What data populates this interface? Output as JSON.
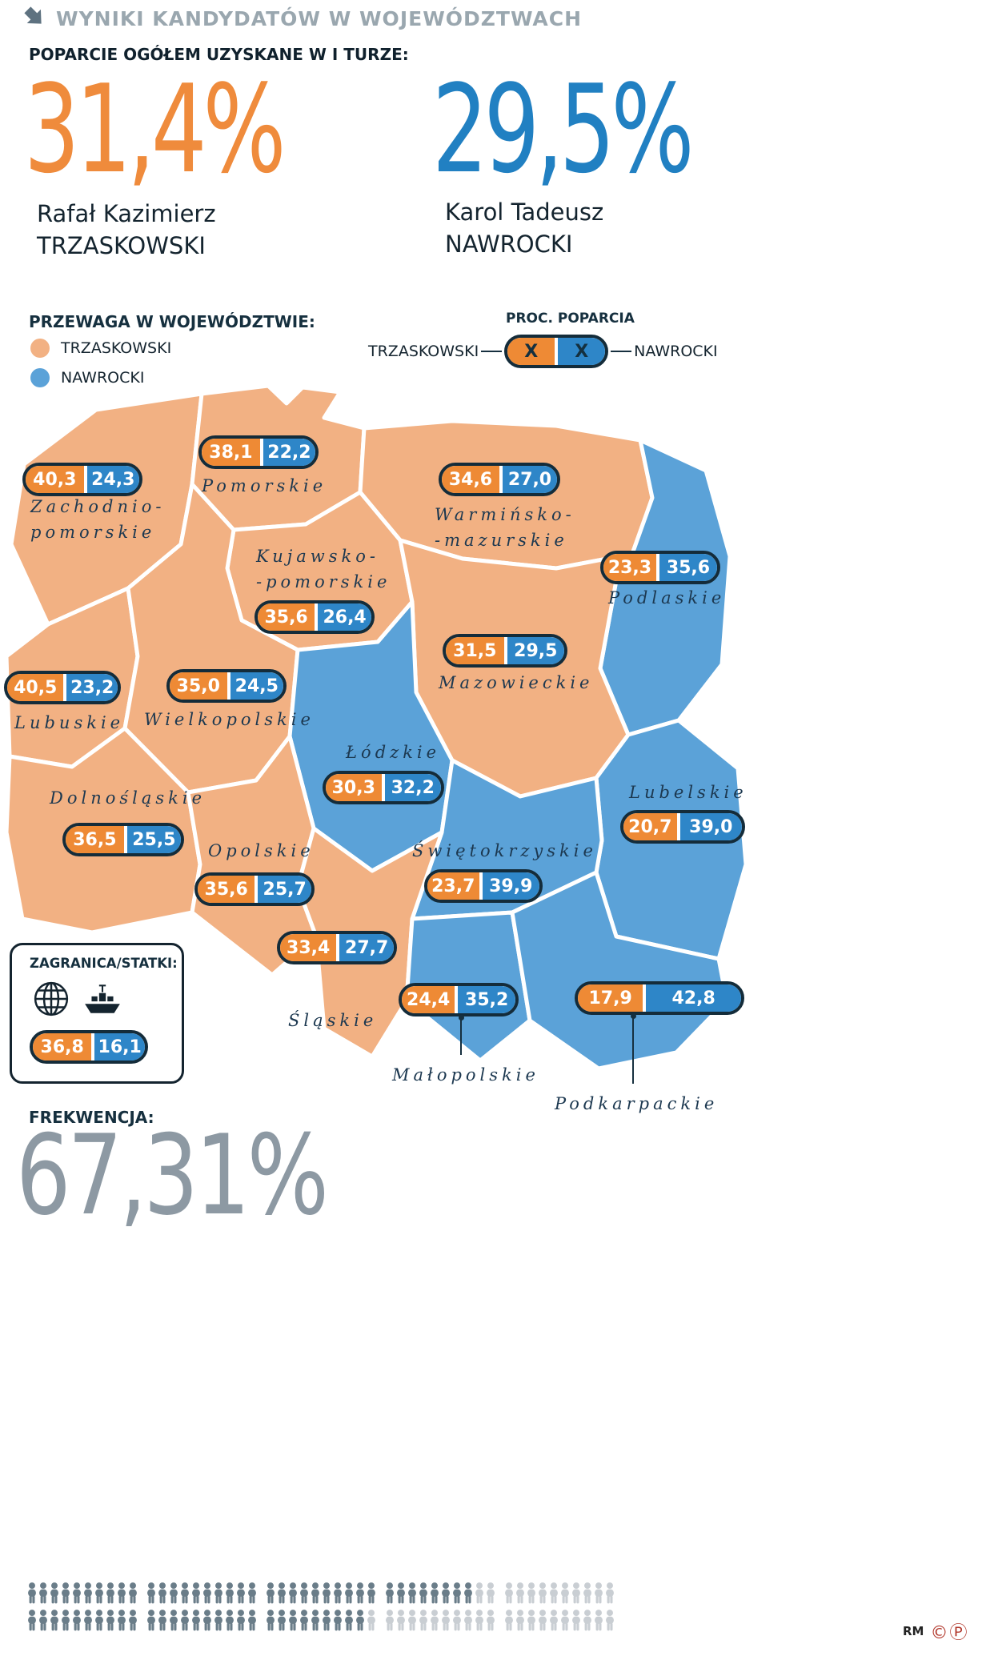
{
  "header": {
    "title": "WYNIKI KANDYDATÓW W WOJEWÓDZTWACH"
  },
  "summary": {
    "heading": "POPARCIE OGÓŁEM UZYSKANE W I TURZE:",
    "candidates": [
      {
        "percent": "31,4%",
        "first_names": "Rafał Kazimierz",
        "last_name": "TRZASKOWSKI"
      },
      {
        "percent": "29,5%",
        "first_names": "Karol Tadeusz",
        "last_name": "NAWROCKI"
      }
    ]
  },
  "legend": {
    "heading": "PRZEWAGA W WOJEWÓDZTWIE:",
    "items": [
      {
        "label": "TRZASKOWSKI"
      },
      {
        "label": "NAWROCKI"
      }
    ],
    "pill_heading": "PROC. POPARCIA",
    "pill_left_label": "TRZASKOWSKI",
    "pill_right_label": "NAWROCKI",
    "pill_left_value": "X",
    "pill_right_value": "X"
  },
  "map": {
    "regions": [
      {
        "id": "zachodniopomorskie",
        "label": "Zachodnio-\npomorskie",
        "trzaskowski": "40,3",
        "nawrocki": "24,3"
      },
      {
        "id": "pomorskie",
        "label": "Pomorskie",
        "trzaskowski": "38,1",
        "nawrocki": "22,2"
      },
      {
        "id": "warminsko_mazurskie",
        "label": "Warmińsko-\n-mazurskie",
        "trzaskowski": "34,6",
        "nawrocki": "27,0"
      },
      {
        "id": "podlaskie",
        "label": "Podlaskie",
        "trzaskowski": "23,3",
        "nawrocki": "35,6"
      },
      {
        "id": "kujawsko_pomorskie",
        "label": "Kujawsko-\n-pomorskie",
        "trzaskowski": "35,6",
        "nawrocki": "26,4"
      },
      {
        "id": "mazowieckie",
        "label": "Mazowieckie",
        "trzaskowski": "31,5",
        "nawrocki": "29,5"
      },
      {
        "id": "lubuskie",
        "label": "Lubuskie",
        "trzaskowski": "40,5",
        "nawrocki": "23,2"
      },
      {
        "id": "wielkopolskie",
        "label": "Wielkopolskie",
        "trzaskowski": "35,0",
        "nawrocki": "24,5"
      },
      {
        "id": "lodzkie",
        "label": "Łódzkie",
        "trzaskowski": "30,3",
        "nawrocki": "32,2"
      },
      {
        "id": "lubelskie",
        "label": "Lubelskie",
        "trzaskowski": "20,7",
        "nawrocki": "39,0"
      },
      {
        "id": "dolnoslaskie",
        "label": "Dolnośląskie",
        "trzaskowski": "36,5",
        "nawrocki": "25,5"
      },
      {
        "id": "opolskie",
        "label": "Opolskie",
        "trzaskowski": "35,6",
        "nawrocki": "25,7"
      },
      {
        "id": "swietokrzyskie",
        "label": "Świętokrzyskie",
        "trzaskowski": "23,7",
        "nawrocki": "39,9"
      },
      {
        "id": "slaskie",
        "label": "Śląskie",
        "trzaskowski": "33,4",
        "nawrocki": "27,7"
      },
      {
        "id": "malopolskie",
        "label": "Małopolskie",
        "trzaskowski": "24,4",
        "nawrocki": "35,2"
      },
      {
        "id": "podkarpackie",
        "label": "Podkarpackie",
        "trzaskowski": "17,9",
        "nawrocki": "42,8"
      }
    ]
  },
  "abroad": {
    "heading": "ZAGRANICA/STATKI:",
    "trzaskowski": "36,8",
    "nawrocki": "16,1"
  },
  "turnout": {
    "heading": "FREKWENCJA:",
    "value": "67,31%",
    "people_total": 100,
    "people_filled": 67,
    "rows": [
      {
        "count": 50,
        "filled": 38
      },
      {
        "count": 50,
        "filled": 29
      }
    ]
  },
  "footer": {
    "credit": "RM",
    "symbols": "©Ⓟ"
  },
  "colors": {
    "accent_orange": "#ee8a35",
    "accent_blue": "#2e86c8",
    "map_orange": "#f2b183",
    "map_blue": "#5ba2d8",
    "big_orange": "#ef8b3c",
    "big_blue": "#2180c2",
    "ink": "#16303f",
    "muted_gray": "#9aa7af",
    "turnout_gray": "#8d99a3",
    "person_filled": "#6a7d89",
    "person_empty": "#c9ced3"
  },
  "chart_data": {
    "type": "table",
    "title": "WYNIKI KANDYDATÓW W WOJEWÓDZTWACH",
    "overall_first_round": {
      "TRZASKOWSKI": 31.4,
      "NAWROCKI": 29.5
    },
    "turnout_percent": 67.31,
    "abroad_ships": {
      "TRZASKOWSKI": 36.8,
      "NAWROCKI": 16.1
    },
    "categories": [
      "Zachodnio-pomorskie",
      "Pomorskie",
      "Warmińsko--mazurskie",
      "Podlaskie",
      "Kujawsko--pomorskie",
      "Mazowieckie",
      "Lubuskie",
      "Wielkopolskie",
      "Łódzkie",
      "Lubelskie",
      "Dolnośląskie",
      "Opolskie",
      "Świętokrzyskie",
      "Śląskie",
      "Małopolskie",
      "Podkarpackie"
    ],
    "series": [
      {
        "name": "TRZASKOWSKI",
        "values": [
          40.3,
          38.1,
          34.6,
          23.3,
          35.6,
          31.5,
          40.5,
          35.0,
          30.3,
          20.7,
          36.5,
          35.6,
          23.7,
          33.4,
          24.4,
          17.9
        ]
      },
      {
        "name": "NAWROCKI",
        "values": [
          24.3,
          22.2,
          27.0,
          35.6,
          26.4,
          29.5,
          23.2,
          24.5,
          32.2,
          39.0,
          25.5,
          25.7,
          39.9,
          27.7,
          35.2,
          42.8
        ]
      }
    ],
    "legend_position": "top-left",
    "winner_color_rule": "orange = TRZASKOWSKI lead, blue = NAWROCKI lead"
  }
}
